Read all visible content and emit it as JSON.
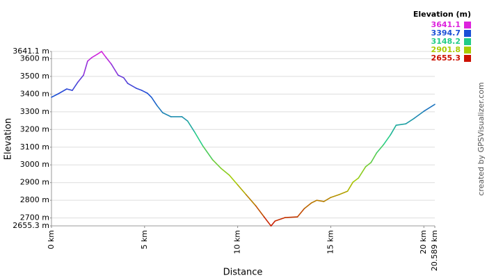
{
  "chart_data": {
    "type": "line",
    "xlabel": "Distance",
    "ylabel": "Elevation",
    "credit": "created by GPSVisualizer.com",
    "x": [
      0,
      0.37,
      0.82,
      1.12,
      1.42,
      1.72,
      1.94,
      2.16,
      2.46,
      2.69,
      2.91,
      3.21,
      3.58,
      3.88,
      4.1,
      4.55,
      4.85,
      5.15,
      5.37,
      5.67,
      5.97,
      6.42,
      7.01,
      7.31,
      7.69,
      8.13,
      8.66,
      9.1,
      9.55,
      10.0,
      10.45,
      10.97,
      11.42,
      11.79,
      12.01,
      12.54,
      13.21,
      13.58,
      13.96,
      14.25,
      14.63,
      15.0,
      15.45,
      15.9,
      16.19,
      16.49,
      16.87,
      17.16,
      17.46,
      17.84,
      18.21,
      18.51,
      19.03,
      19.48,
      20.0,
      20.589
    ],
    "values": [
      3382,
      3402,
      3429,
      3421,
      3468,
      3507,
      3586,
      3606,
      3625,
      3641,
      3610,
      3570,
      3507,
      3492,
      3460,
      3433,
      3421,
      3405,
      3382,
      3335,
      3295,
      3272,
      3272,
      3248,
      3185,
      3107,
      3028,
      2981,
      2942,
      2887,
      2832,
      2769,
      2706,
      2655,
      2683,
      2702,
      2706,
      2753,
      2785,
      2800,
      2793,
      2816,
      2832,
      2851,
      2902,
      2926,
      2989,
      3013,
      3067,
      3115,
      3170,
      3224,
      3232,
      3263,
      3303,
      3342
    ],
    "xlim": [
      0,
      20.589
    ],
    "xticks": [
      {
        "value": 0,
        "label": "0 km"
      },
      {
        "value": 5,
        "label": "5 km"
      },
      {
        "value": 10,
        "label": "10 km"
      },
      {
        "value": 15,
        "label": "15 km"
      },
      {
        "value": 20,
        "label": "20 km"
      },
      {
        "value": 20.589,
        "label": "20.589 km"
      }
    ],
    "ylim": [
      2655.3,
      3641.1
    ],
    "yticks": [
      {
        "value": 2655.3,
        "label": "2655.3 m"
      },
      {
        "value": 2700,
        "label": "2700 m"
      },
      {
        "value": 2800,
        "label": "2800 m"
      },
      {
        "value": 2900,
        "label": "2900 m"
      },
      {
        "value": 3000,
        "label": "3000 m"
      },
      {
        "value": 3100,
        "label": "3100 m"
      },
      {
        "value": 3200,
        "label": "3200 m"
      },
      {
        "value": 3300,
        "label": "3300 m"
      },
      {
        "value": 3400,
        "label": "3400 m"
      },
      {
        "value": 3500,
        "label": "3500 m"
      },
      {
        "value": 3600,
        "label": "3600 m"
      },
      {
        "value": 3641.1,
        "label": "3641.1 m"
      }
    ],
    "grid": true,
    "legend": {
      "title": "Elevation (m)",
      "entries": [
        {
          "value": 3641.1,
          "color": "#dd22dd"
        },
        {
          "value": 3394.7,
          "color": "#1a4fd6"
        },
        {
          "value": 3148.2,
          "color": "#22cc88"
        },
        {
          "value": 2901.8,
          "color": "#aacc00"
        },
        {
          "value": 2655.3,
          "color": "#cc1100"
        }
      ]
    }
  }
}
